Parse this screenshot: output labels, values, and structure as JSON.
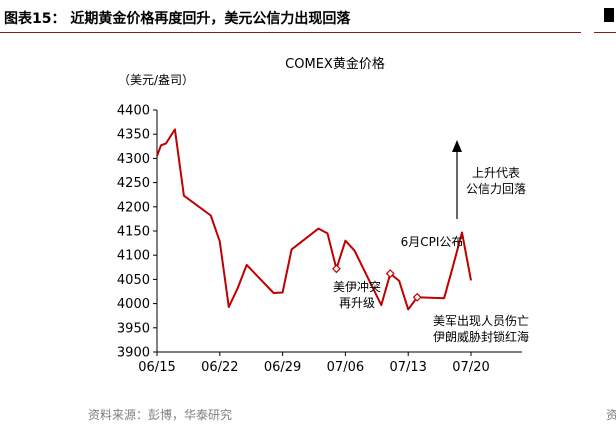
{
  "figure": {
    "title": "图表15： 近期黄金价格再度回升，美元公信力出现回落",
    "source": "资料来源：彭博，华泰研究"
  },
  "colors": {
    "line": "#c00000",
    "rule": "#7a1e1e",
    "axis": "#000000",
    "source": "#7f7f7f"
  },
  "chart_data": {
    "type": "line",
    "title": "COMEX黄金价格",
    "ylabel": "（美元/盎司）",
    "xlabel": "",
    "ylim": [
      3900,
      4400
    ],
    "yticks": [
      3900,
      3950,
      4000,
      4050,
      4100,
      4150,
      4200,
      4250,
      4300,
      4350,
      4400
    ],
    "xticks": [
      "06/15",
      "06/22",
      "06/29",
      "07/06",
      "07/13",
      "07/20"
    ],
    "grid": false,
    "series": [
      {
        "values": [
          [
            "06/15",
            4305
          ],
          [
            "06/15",
            4327
          ],
          [
            "06/16",
            4331
          ],
          [
            "06/17",
            4360
          ],
          [
            "06/18",
            4223
          ],
          [
            "06/21",
            4182
          ],
          [
            "06/22",
            4128
          ],
          [
            "06/23",
            3993
          ],
          [
            "06/24",
            4032
          ],
          [
            "06/25",
            4080
          ],
          [
            "06/28",
            4022
          ],
          [
            "06/29",
            4023
          ],
          [
            "06/30",
            4112
          ],
          [
            "07/03",
            4155
          ],
          [
            "07/04",
            4145
          ],
          [
            "07/05",
            4072
          ],
          [
            "07/06",
            4130
          ],
          [
            "07/07",
            4110
          ],
          [
            "07/10",
            3997
          ],
          [
            "07/11",
            4062
          ],
          [
            "07/12",
            4047
          ],
          [
            "07/13",
            3988
          ],
          [
            "07/14",
            4013
          ],
          [
            "07/17",
            4011
          ],
          [
            "07/18",
            4078
          ],
          [
            "07/19",
            4147
          ],
          [
            "07/20",
            4048
          ]
        ]
      }
    ],
    "markers": [
      [
        "07/05",
        4072
      ],
      [
        "07/11",
        4062
      ],
      [
        "07/14",
        4013
      ]
    ],
    "annotations": [
      {
        "lines": [
          "上升代表",
          "公信力回落"
        ]
      },
      {
        "lines": [
          "6月CPI公布"
        ]
      },
      {
        "lines": [
          "美伊冲突",
          "再升级"
        ]
      },
      {
        "lines": [
          "美军出现人员伤亡",
          "伊朗威胁封锁红海"
        ]
      }
    ]
  }
}
